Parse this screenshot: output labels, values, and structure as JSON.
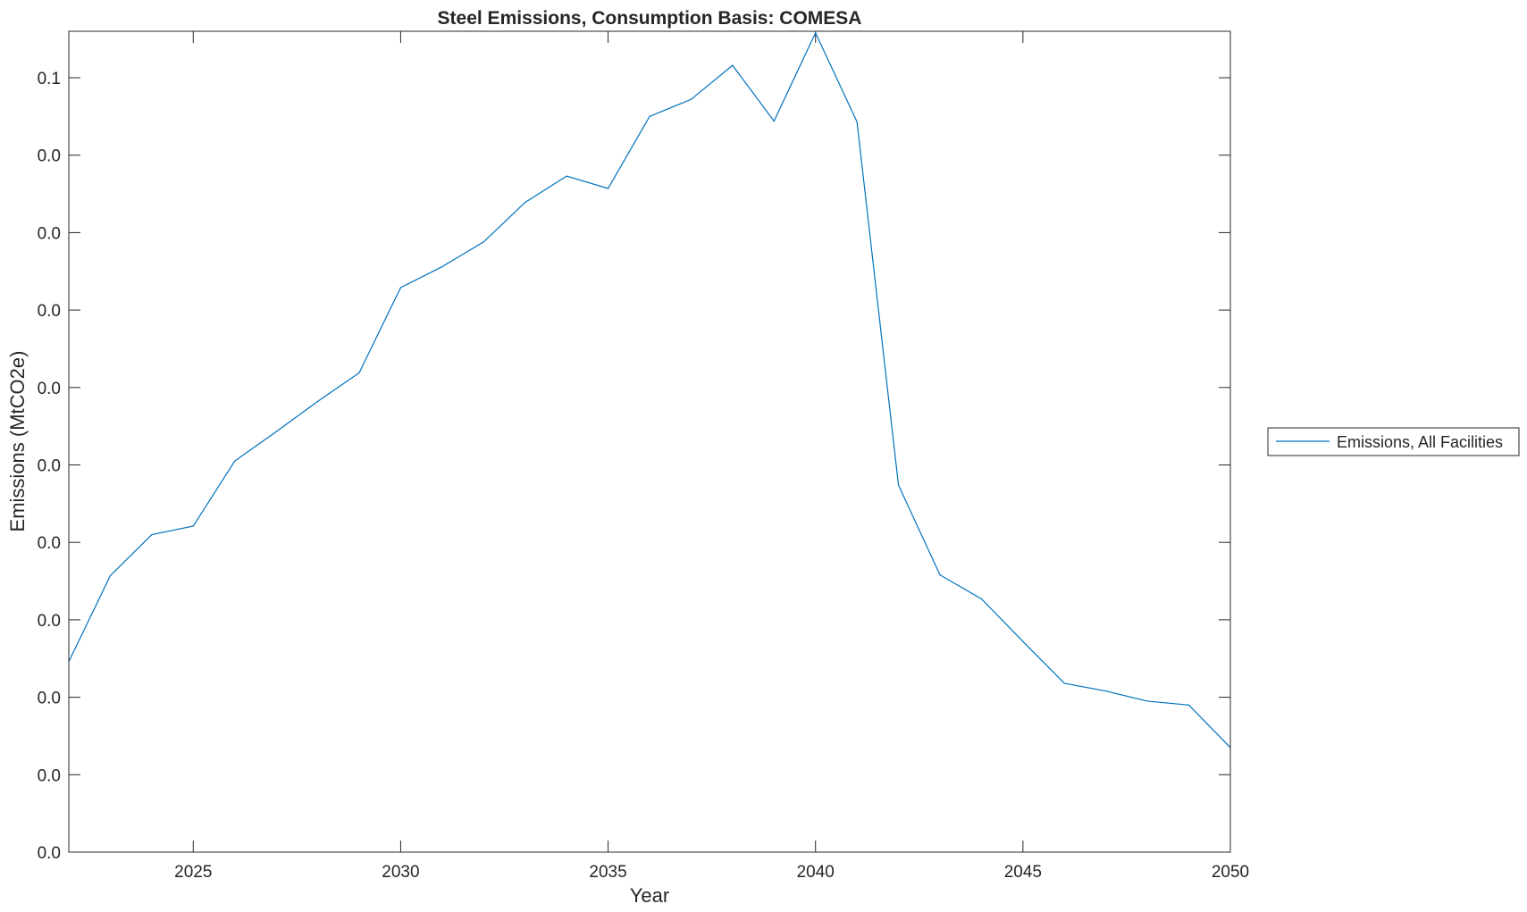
{
  "chart_data": {
    "type": "line",
    "title": "Steel Emissions, Consumption Basis: COMESA",
    "xlabel": "Year",
    "ylabel": "Emissions (MtCO2e)",
    "xlim": [
      2022,
      2050
    ],
    "ylim": [
      0,
      0.106
    ],
    "x_ticks": [
      2025,
      2030,
      2035,
      2040,
      2045,
      2050
    ],
    "y_ticks": [
      0,
      0.01,
      0.02,
      0.03,
      0.04,
      0.05,
      0.06,
      0.07,
      0.08,
      0.09,
      0.1
    ],
    "y_tick_labels": [
      "0.0",
      "0.0",
      "0.0",
      "0.0",
      "0.0",
      "0.0",
      "0.0",
      "0.0",
      "0.0",
      "0.0",
      "0.1"
    ],
    "grid": false,
    "legend_position": "outside-right",
    "series": [
      {
        "name": "Emissions, All Facilities",
        "color": "#0072BD",
        "x": [
          2022,
          2023,
          2024,
          2025,
          2026,
          2027,
          2028,
          2029,
          2030,
          2031,
          2032,
          2033,
          2034,
          2035,
          2036,
          2037,
          2038,
          2039,
          2040,
          2041,
          2042,
          2043,
          2044,
          2045,
          2046,
          2047,
          2048,
          2049,
          2050
        ],
        "values": [
          0.0246,
          0.0357,
          0.041,
          0.0421,
          0.0505,
          0.0543,
          0.0582,
          0.0619,
          0.0729,
          0.0756,
          0.0788,
          0.0839,
          0.0873,
          0.0857,
          0.095,
          0.0972,
          0.1016,
          0.0944,
          0.1058,
          0.0943,
          0.0474,
          0.0358,
          0.0327,
          0.0272,
          0.0218,
          0.0208,
          0.0195,
          0.019,
          0.0135
        ]
      }
    ]
  }
}
